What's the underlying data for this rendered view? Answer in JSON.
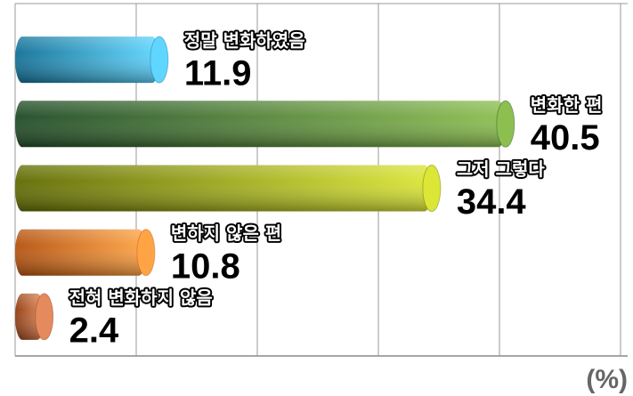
{
  "chart_data": {
    "type": "bar",
    "orientation": "horizontal",
    "categories": [
      "정말 변화하였음",
      "변화한 편",
      "그저 그렇다",
      "변하지 않은 편",
      "전혀 변화하지 않음"
    ],
    "values": [
      11.9,
      40.5,
      34.4,
      10.8,
      2.4
    ],
    "colors": [
      [
        "#0f6f96",
        "#5fd6ff"
      ],
      [
        "#1f4a25",
        "#8cbf50"
      ],
      [
        "#5f6a00",
        "#dbe636"
      ],
      [
        "#b4500c",
        "#ffa444"
      ],
      [
        "#8f3a0e",
        "#e48a5c"
      ]
    ],
    "xlim": [
      0,
      50
    ],
    "xticks": [
      0,
      10,
      20,
      30,
      40,
      50
    ],
    "grid": true,
    "unit_label": "(%)"
  }
}
